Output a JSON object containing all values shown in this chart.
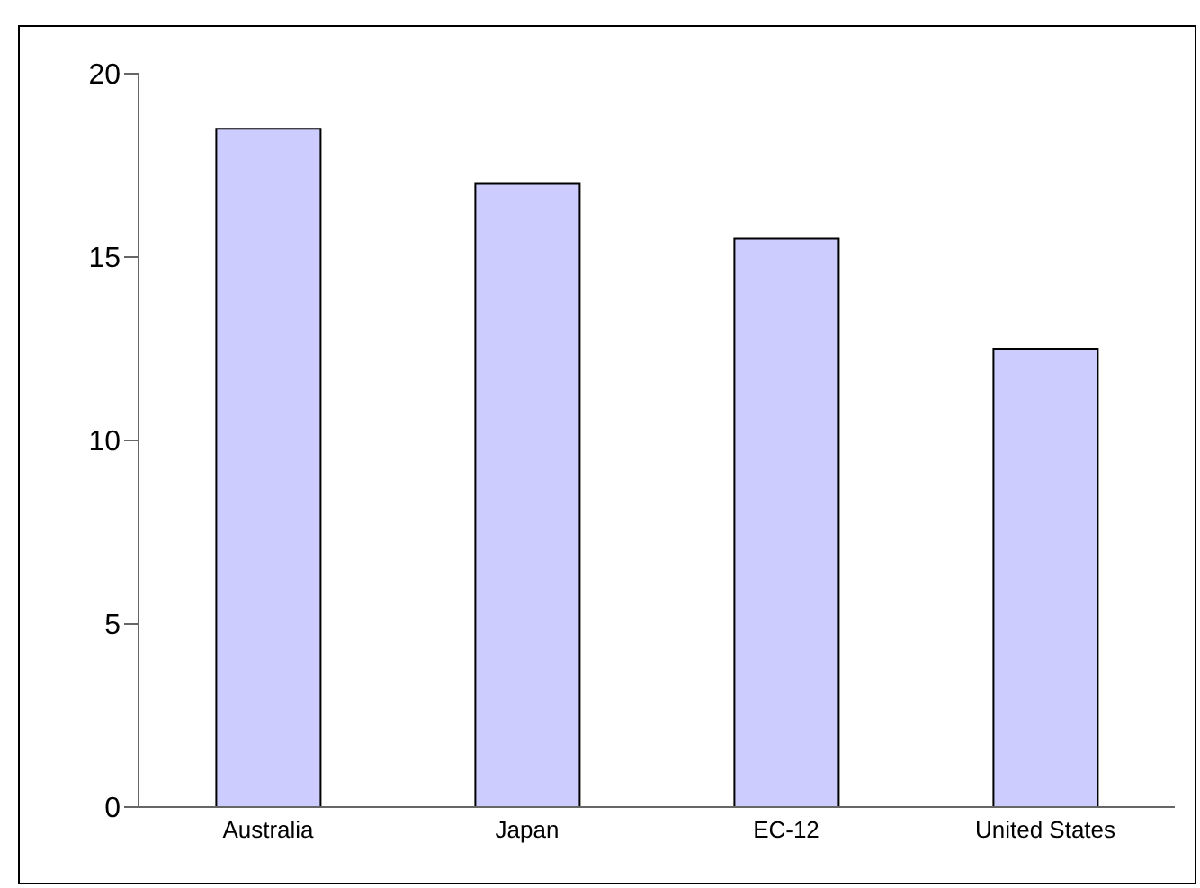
{
  "chart_data": {
    "type": "bar",
    "categories": [
      "Australia",
      "Japan",
      "EC-12",
      "United States"
    ],
    "values": [
      18.5,
      17,
      15.5,
      12.5
    ],
    "color": "#ccccff",
    "ylim": [
      0,
      20
    ],
    "yticks": [
      0,
      5,
      10,
      15,
      20
    ],
    "grid": false,
    "legend": false
  }
}
